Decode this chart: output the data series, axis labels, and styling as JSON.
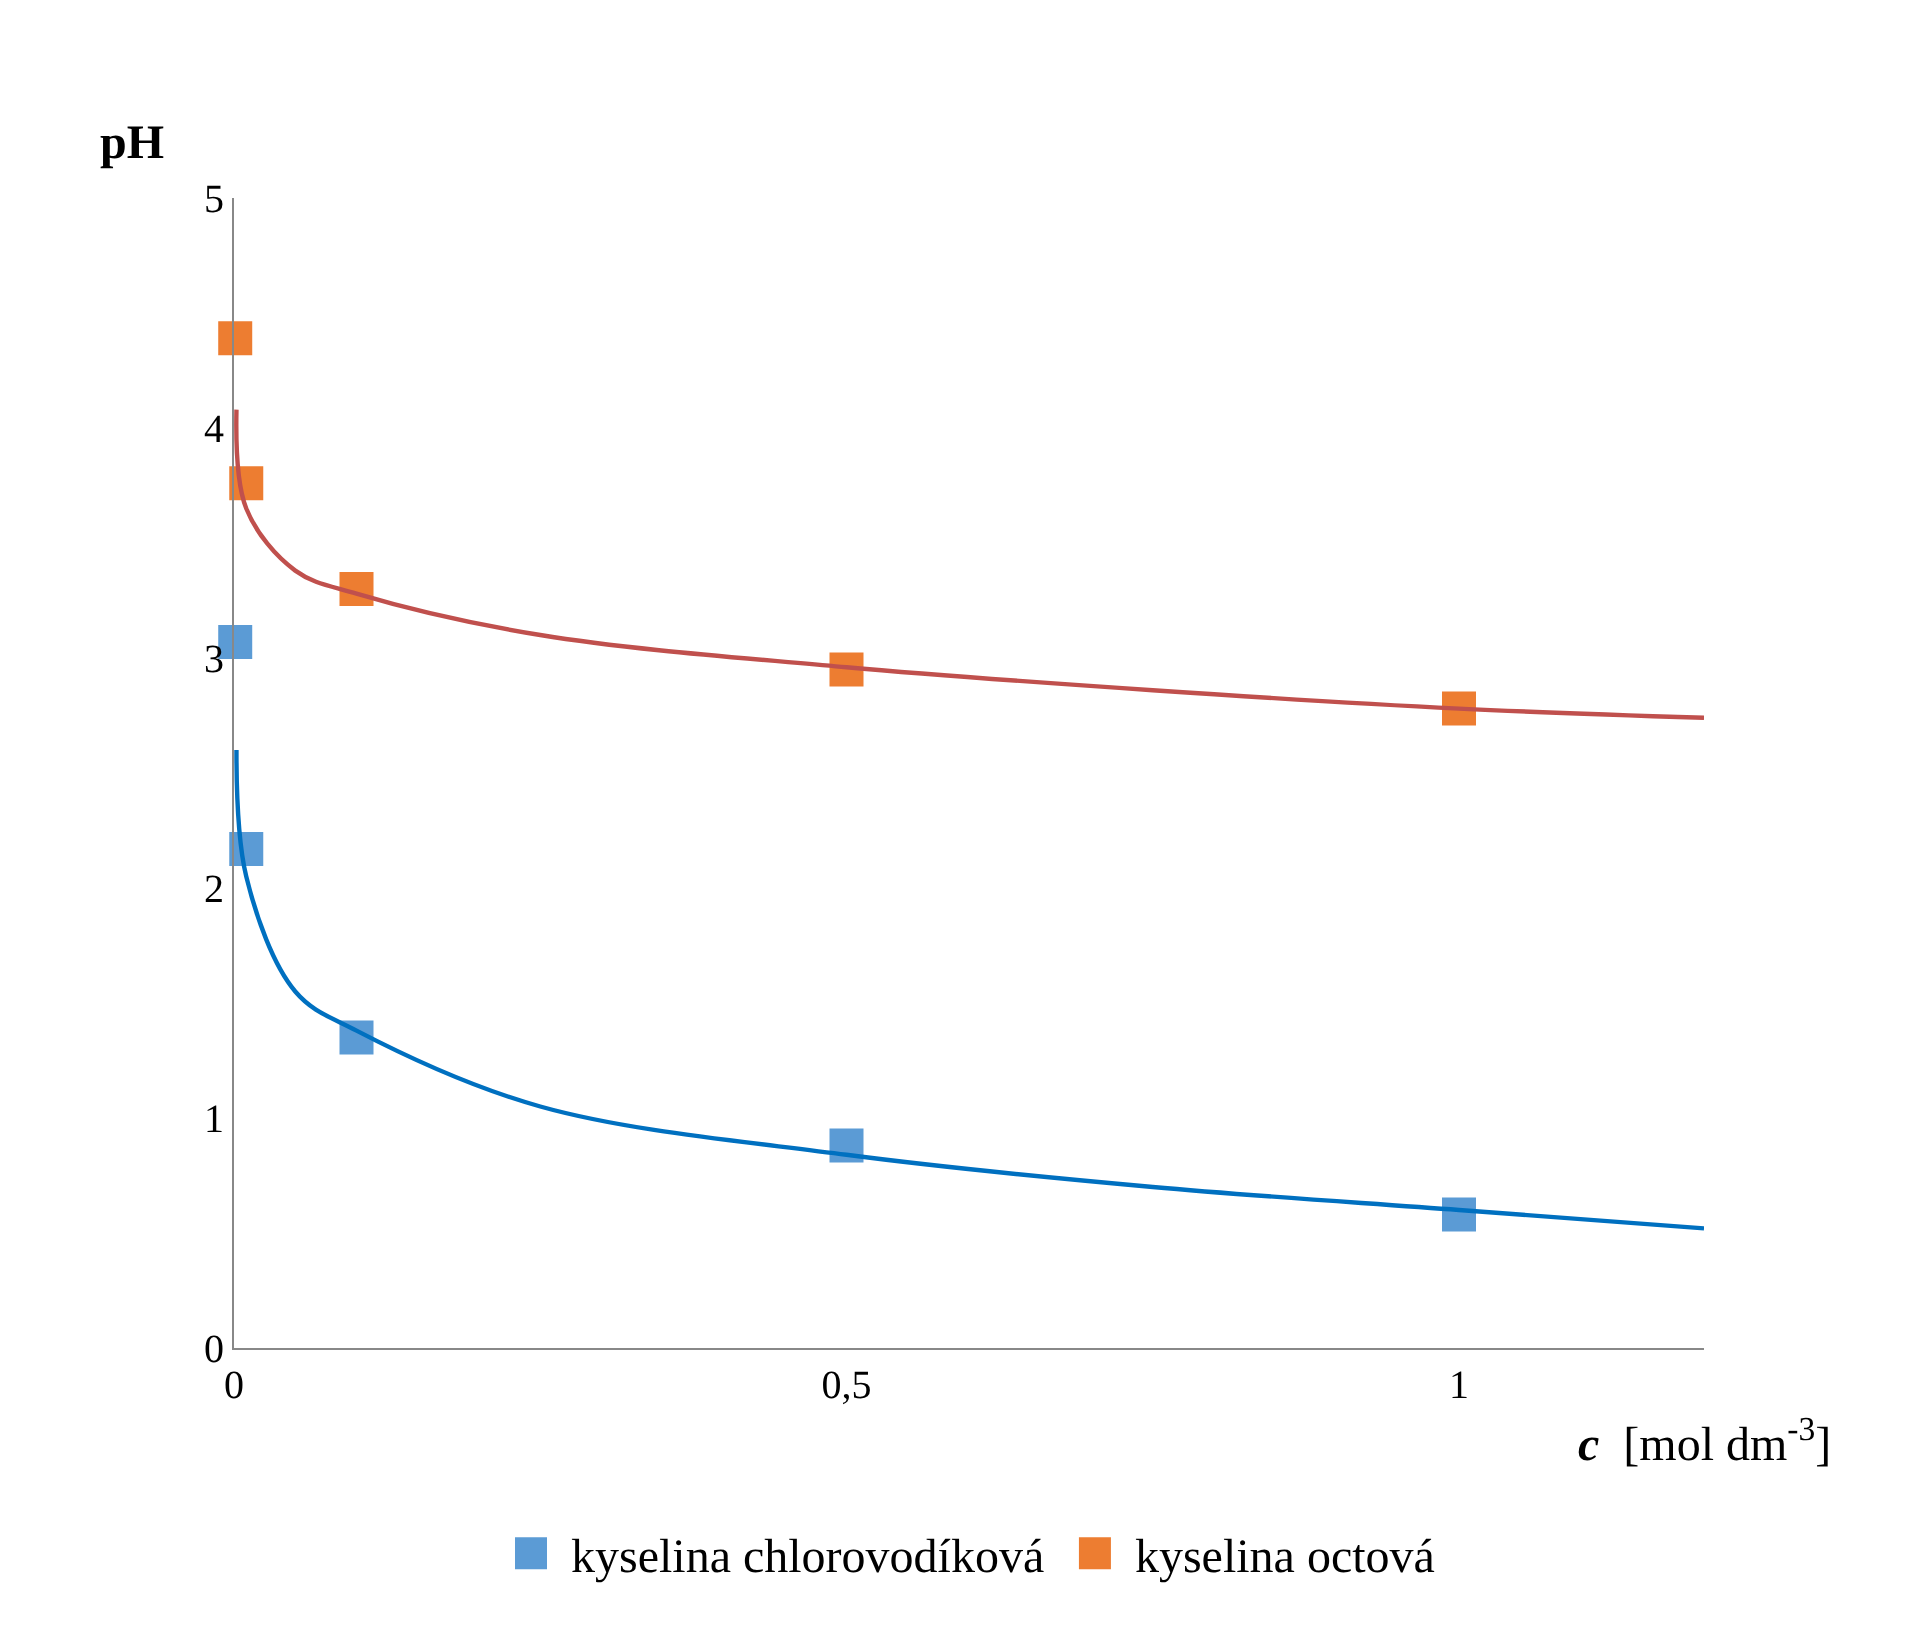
{
  "chart_data": {
    "type": "scatter",
    "xlabel": "c [mol dm$^{-3}$]",
    "ylabel": "pH",
    "series": [
      {
        "name": "kyselina chlorovodíková",
        "color": "#5b9bd5",
        "x": [
          0.001,
          0.01,
          0.1,
          0.5,
          1
        ],
        "values": [
          3.07,
          2.17,
          1.35,
          0.88,
          0.58
        ]
      },
      {
        "name": "kyselina octová",
        "color": "#ed7d31",
        "x": [
          0.001,
          0.01,
          0.1,
          0.5,
          1
        ],
        "values": [
          4.39,
          3.76,
          3.3,
          2.95,
          2.78
        ]
      },
      {
        "type": "line",
        "marker": "none",
        "color": "#0070c0",
        "x": [
          0.002,
          0.01,
          0.05,
          0.1,
          0.25,
          0.5,
          0.75,
          1,
          1.2
        ],
        "values": [
          2.6,
          2.05,
          1.55,
          1.38,
          1.05,
          0.84,
          0.7,
          0.6,
          0.52
        ]
      },
      {
        "type": "line",
        "marker": "none",
        "color": "#c0504d",
        "x": [
          0.002,
          0.01,
          0.05,
          0.1,
          0.25,
          0.5,
          0.75,
          1,
          1.2
        ],
        "values": [
          4.08,
          3.65,
          3.38,
          3.28,
          3.1,
          2.96,
          2.86,
          2.78,
          2.74
        ]
      }
    ],
    "xlim": [
      0,
      1.2
    ],
    "xticks": [
      0,
      {
        "value": 0.5,
        "label": "0,5"
      },
      1
    ],
    "ylim": [
      0,
      5
    ],
    "yticks": [
      0,
      1,
      2,
      3,
      4,
      5
    ],
    "marker": "square",
    "legend": "bottom"
  }
}
